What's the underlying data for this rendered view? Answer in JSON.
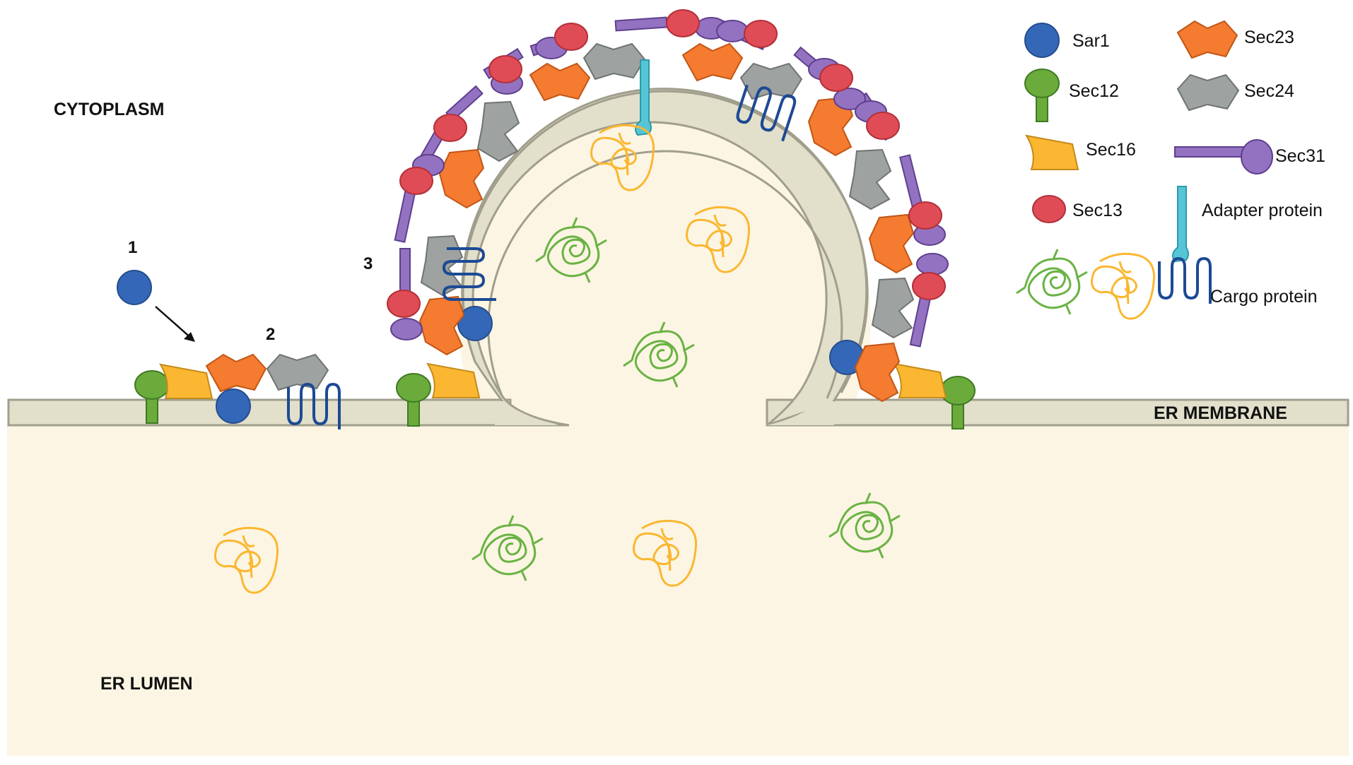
{
  "regions": {
    "cytoplasm": "CYTOPLASM",
    "er_membrane": "ER MEMBRANE",
    "er_lumen": "ER LUMEN"
  },
  "steps": [
    "1",
    "2",
    "3"
  ],
  "legend": {
    "sar1": "Sar1",
    "sec12": "Sec12",
    "sec16": "Sec16",
    "sec13": "Sec13",
    "sec23": "Sec23",
    "sec24": "Sec24",
    "sec31": "Sec31",
    "adapter": "Adapter protein",
    "cargo": "Cargo  protein"
  },
  "colors": {
    "sar1": "#3567b8",
    "sec12": "#6aab3c",
    "sec16": "#fbb731",
    "sec13": "#e04c55",
    "sec23": "#f47b2f",
    "sec24": "#9ea2a1",
    "sec31": "#9373c1",
    "adapter": "#56c6d6",
    "cargo_soluble_a": "#6ab344",
    "cargo_soluble_b": "#fbb731",
    "cargo_membrane": "#1c4a94",
    "membrane_fill": "#e2dfcb",
    "membrane_stroke": "#a09e8c",
    "lumen": "#fcf5e3"
  }
}
